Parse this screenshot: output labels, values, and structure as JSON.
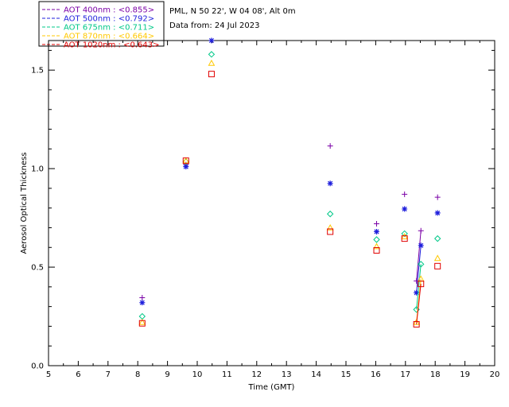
{
  "info": {
    "site": "PML, N 50 22', W 04 08', Alt 0m",
    "date": "Data from: 24 Jul 2023"
  },
  "chart_data": {
    "type": "scatter",
    "title": "",
    "xlabel": "Time (GMT)",
    "ylabel": "Aerosol Optical Thickness",
    "xlim": [
      5,
      20
    ],
    "ylim": [
      0,
      1.65
    ],
    "xticks": [
      5,
      6,
      7,
      8,
      9,
      10,
      11,
      12,
      13,
      14,
      15,
      16,
      17,
      18,
      19,
      20
    ],
    "yticks": [
      0.0,
      0.5,
      1.0,
      1.5
    ],
    "ytick_labels": [
      "0.0",
      "0.5",
      "1.0",
      "1.5"
    ],
    "grid": false,
    "legend_position": "top-left, outside plot",
    "series": [
      {
        "name": "AOT  400nm : <0.855>",
        "color": "#7a00a6",
        "marker": "plus",
        "x": [
          8.15,
          9.62,
          10.48,
          14.47,
          16.03,
          16.97,
          17.37,
          17.52,
          18.08
        ],
        "y": [
          0.345,
          1.02,
          1.65,
          1.115,
          0.72,
          0.87,
          0.43,
          0.685,
          0.855
        ],
        "line_segment": {
          "x": [
            17.37,
            17.52
          ],
          "y": [
            0.43,
            0.685
          ]
        }
      },
      {
        "name": "AOT  500nm : <0.792>",
        "color": "#1e1edc",
        "marker": "asterisk",
        "x": [
          8.15,
          9.62,
          10.48,
          14.47,
          16.03,
          16.97,
          17.37,
          17.52,
          18.08
        ],
        "y": [
          0.32,
          1.01,
          1.65,
          0.925,
          0.68,
          0.795,
          0.37,
          0.61,
          0.775
        ],
        "line_segment": {
          "x": [
            17.37,
            17.52
          ],
          "y": [
            0.37,
            0.61
          ]
        }
      },
      {
        "name": "AOT  675nm : <0.711>",
        "color": "#00c888",
        "marker": "diamond",
        "x": [
          8.15,
          9.62,
          10.48,
          14.47,
          16.03,
          16.97,
          17.37,
          17.52,
          18.08
        ],
        "y": [
          0.25,
          1.035,
          1.58,
          0.77,
          0.64,
          0.67,
          0.285,
          0.515,
          0.645
        ],
        "line_segment": {
          "x": [
            17.37,
            17.52
          ],
          "y": [
            0.285,
            0.515
          ]
        }
      },
      {
        "name": "AOT  870nm : <0.664>",
        "color": "#ffc800",
        "marker": "triangle",
        "x": [
          8.15,
          9.62,
          10.48,
          14.47,
          16.03,
          16.97,
          17.37,
          17.52,
          18.08
        ],
        "y": [
          0.22,
          1.04,
          1.535,
          0.7,
          0.605,
          0.655,
          0.22,
          0.44,
          0.545
        ],
        "line_segment": {
          "x": [
            17.37,
            17.52
          ],
          "y": [
            0.22,
            0.44
          ]
        }
      },
      {
        "name": "AOT 1020nm : <0.643>",
        "color": "#e00000",
        "marker": "square",
        "x": [
          8.15,
          9.62,
          10.48,
          14.47,
          16.03,
          16.97,
          17.37,
          17.52,
          18.08
        ],
        "y": [
          0.215,
          1.04,
          1.48,
          0.68,
          0.585,
          0.645,
          0.21,
          0.415,
          0.505
        ],
        "line_segment": {
          "x": [
            17.37,
            17.52
          ],
          "y": [
            0.21,
            0.415
          ]
        }
      }
    ]
  }
}
